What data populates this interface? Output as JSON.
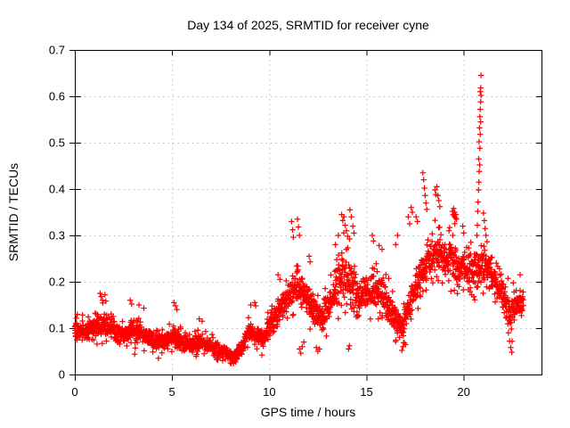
{
  "chart_data": {
    "type": "scatter",
    "title": "Day 134 of 2025, SRMTID for receiver cyne",
    "xlabel": "GPS time / hours",
    "ylabel": "SRMTID / TECUs",
    "xlim": [
      0,
      24
    ],
    "ylim": [
      0,
      0.7
    ],
    "xticks": [
      0,
      5,
      10,
      15,
      20
    ],
    "xtick_labels": [
      "0",
      "5",
      "10",
      "15",
      "20"
    ],
    "yticks": [
      0,
      0.1,
      0.2,
      0.3,
      0.4,
      0.5,
      0.6,
      0.7
    ],
    "ytick_labels": [
      "0",
      "0.1",
      "0.2",
      "0.3",
      "0.4",
      "0.5",
      "0.6",
      "0.7"
    ],
    "grid": true,
    "legend_position": "none",
    "marker": {
      "shape": "plus",
      "color": "#ff0000",
      "size": 7
    },
    "grid_color": "#bbbbbb",
    "border_color": "#000000",
    "series": [
      {
        "name": "SRMTID",
        "points_per_hour": 100,
        "x_start": 0.0,
        "x_end": 23.08,
        "band_envelope": [
          [
            0.0,
            0.095,
            0.03
          ],
          [
            0.5,
            0.09,
            0.03
          ],
          [
            1.0,
            0.1,
            0.035
          ],
          [
            1.4,
            0.11,
            0.045
          ],
          [
            1.8,
            0.1,
            0.04
          ],
          [
            2.3,
            0.085,
            0.03
          ],
          [
            2.9,
            0.095,
            0.04
          ],
          [
            3.4,
            0.085,
            0.035
          ],
          [
            4.0,
            0.075,
            0.03
          ],
          [
            4.5,
            0.07,
            0.025
          ],
          [
            5.1,
            0.08,
            0.035
          ],
          [
            5.6,
            0.065,
            0.025
          ],
          [
            6.2,
            0.07,
            0.03
          ],
          [
            6.8,
            0.065,
            0.025
          ],
          [
            7.4,
            0.055,
            0.022
          ],
          [
            7.9,
            0.045,
            0.018
          ],
          [
            8.2,
            0.038,
            0.015
          ],
          [
            8.6,
            0.055,
            0.022
          ],
          [
            9.0,
            0.095,
            0.035
          ],
          [
            9.4,
            0.085,
            0.03
          ],
          [
            9.7,
            0.075,
            0.03
          ],
          [
            10.0,
            0.105,
            0.04
          ],
          [
            10.4,
            0.13,
            0.05
          ],
          [
            10.8,
            0.15,
            0.05
          ],
          [
            11.2,
            0.185,
            0.06
          ],
          [
            11.5,
            0.195,
            0.06
          ],
          [
            11.9,
            0.16,
            0.05
          ],
          [
            12.3,
            0.14,
            0.05
          ],
          [
            12.7,
            0.115,
            0.05
          ],
          [
            13.1,
            0.15,
            0.055
          ],
          [
            13.5,
            0.19,
            0.07
          ],
          [
            13.8,
            0.23,
            0.09
          ],
          [
            14.1,
            0.2,
            0.09
          ],
          [
            14.5,
            0.17,
            0.055
          ],
          [
            15.0,
            0.18,
            0.055
          ],
          [
            15.5,
            0.185,
            0.055
          ],
          [
            16.0,
            0.16,
            0.055
          ],
          [
            16.4,
            0.13,
            0.05
          ],
          [
            16.8,
            0.1,
            0.045
          ],
          [
            17.2,
            0.15,
            0.055
          ],
          [
            17.7,
            0.2,
            0.065
          ],
          [
            18.1,
            0.24,
            0.075
          ],
          [
            18.6,
            0.27,
            0.075
          ],
          [
            19.0,
            0.25,
            0.07
          ],
          [
            19.4,
            0.25,
            0.075
          ],
          [
            19.8,
            0.23,
            0.065
          ],
          [
            20.2,
            0.22,
            0.06
          ],
          [
            20.7,
            0.225,
            0.062
          ],
          [
            21.1,
            0.235,
            0.07
          ],
          [
            21.6,
            0.2,
            0.055
          ],
          [
            22.0,
            0.17,
            0.055
          ],
          [
            22.4,
            0.13,
            0.06
          ],
          [
            22.8,
            0.155,
            0.045
          ],
          [
            23.1,
            0.16,
            0.04
          ]
        ],
        "outlier_points": [
          [
            1.3,
            0.175
          ],
          [
            1.35,
            0.168
          ],
          [
            1.42,
            0.16
          ],
          [
            1.55,
            0.172
          ],
          [
            1.6,
            0.158
          ],
          [
            2.85,
            0.16
          ],
          [
            2.92,
            0.152
          ],
          [
            3.3,
            0.15
          ],
          [
            3.55,
            0.143
          ],
          [
            5.1,
            0.155
          ],
          [
            5.18,
            0.148
          ],
          [
            5.25,
            0.14
          ],
          [
            6.4,
            0.12
          ],
          [
            6.55,
            0.115
          ],
          [
            9.05,
            0.15
          ],
          [
            9.25,
            0.155
          ],
          [
            9.3,
            0.148
          ],
          [
            10.45,
            0.215
          ],
          [
            10.55,
            0.205
          ],
          [
            11.15,
            0.33
          ],
          [
            11.2,
            0.312
          ],
          [
            11.24,
            0.296
          ],
          [
            11.45,
            0.335
          ],
          [
            11.5,
            0.318
          ],
          [
            11.55,
            0.3
          ],
          [
            12.05,
            0.255
          ],
          [
            12.1,
            0.243
          ],
          [
            13.4,
            0.28
          ],
          [
            13.55,
            0.3
          ],
          [
            13.72,
            0.345
          ],
          [
            13.78,
            0.332
          ],
          [
            13.84,
            0.34
          ],
          [
            13.9,
            0.322
          ],
          [
            13.97,
            0.31
          ],
          [
            14.03,
            0.298
          ],
          [
            14.15,
            0.355
          ],
          [
            14.22,
            0.34
          ],
          [
            14.3,
            0.32
          ],
          [
            14.36,
            0.305
          ],
          [
            15.3,
            0.3
          ],
          [
            15.36,
            0.288
          ],
          [
            15.65,
            0.278
          ],
          [
            15.8,
            0.27
          ],
          [
            16.5,
            0.28
          ],
          [
            16.6,
            0.3
          ],
          [
            17.15,
            0.34
          ],
          [
            17.22,
            0.325
          ],
          [
            17.3,
            0.36
          ],
          [
            17.36,
            0.35
          ],
          [
            17.55,
            0.34
          ],
          [
            17.62,
            0.33
          ],
          [
            17.9,
            0.435
          ],
          [
            17.94,
            0.42
          ],
          [
            17.98,
            0.402
          ],
          [
            18.02,
            0.386
          ],
          [
            18.06,
            0.37
          ],
          [
            18.1,
            0.356
          ],
          [
            18.52,
            0.398
          ],
          [
            18.57,
            0.388
          ],
          [
            18.62,
            0.405
          ],
          [
            18.67,
            0.386
          ],
          [
            18.72,
            0.375
          ],
          [
            18.77,
            0.362
          ],
          [
            19.42,
            0.352
          ],
          [
            19.45,
            0.345
          ],
          [
            19.48,
            0.358
          ],
          [
            19.51,
            0.342
          ],
          [
            19.54,
            0.35
          ],
          [
            19.57,
            0.338
          ],
          [
            19.6,
            0.345
          ],
          [
            19.63,
            0.335
          ],
          [
            19.95,
            0.32
          ],
          [
            20.0,
            0.305
          ],
          [
            20.68,
            0.3
          ],
          [
            20.7,
            0.322
          ],
          [
            20.72,
            0.352
          ],
          [
            20.74,
            0.372
          ],
          [
            20.76,
            0.398
          ],
          [
            20.78,
            0.415
          ],
          [
            20.8,
            0.438
          ],
          [
            20.82,
            0.452
          ],
          [
            20.77,
            0.465
          ],
          [
            20.83,
            0.488
          ],
          [
            20.79,
            0.502
          ],
          [
            20.85,
            0.518
          ],
          [
            20.81,
            0.532
          ],
          [
            20.87,
            0.545
          ],
          [
            20.83,
            0.556
          ],
          [
            20.85,
            0.572
          ],
          [
            20.87,
            0.588
          ],
          [
            20.89,
            0.602
          ],
          [
            20.85,
            0.61
          ],
          [
            20.87,
            0.618
          ],
          [
            20.89,
            0.645
          ],
          [
            21.02,
            0.348
          ],
          [
            21.06,
            0.332
          ],
          [
            21.1,
            0.315
          ],
          [
            21.14,
            0.3
          ],
          [
            22.9,
            0.215
          ],
          [
            4.3,
            0.035
          ],
          [
            7.6,
            0.03
          ],
          [
            8.1,
            0.028
          ],
          [
            8.16,
            0.024
          ],
          [
            8.22,
            0.03
          ],
          [
            9.62,
            0.042
          ],
          [
            11.55,
            0.055
          ],
          [
            11.62,
            0.046
          ],
          [
            11.7,
            0.06
          ],
          [
            11.78,
            0.07
          ],
          [
            12.42,
            0.058
          ],
          [
            12.5,
            0.05
          ],
          [
            12.58,
            0.055
          ],
          [
            14.08,
            0.055
          ],
          [
            14.12,
            0.062
          ],
          [
            16.82,
            0.052
          ],
          [
            16.88,
            0.06
          ],
          [
            16.94,
            0.068
          ],
          [
            22.3,
            0.09
          ],
          [
            22.36,
            0.072
          ],
          [
            22.42,
            0.058
          ],
          [
            22.47,
            0.048
          ]
        ]
      }
    ]
  }
}
